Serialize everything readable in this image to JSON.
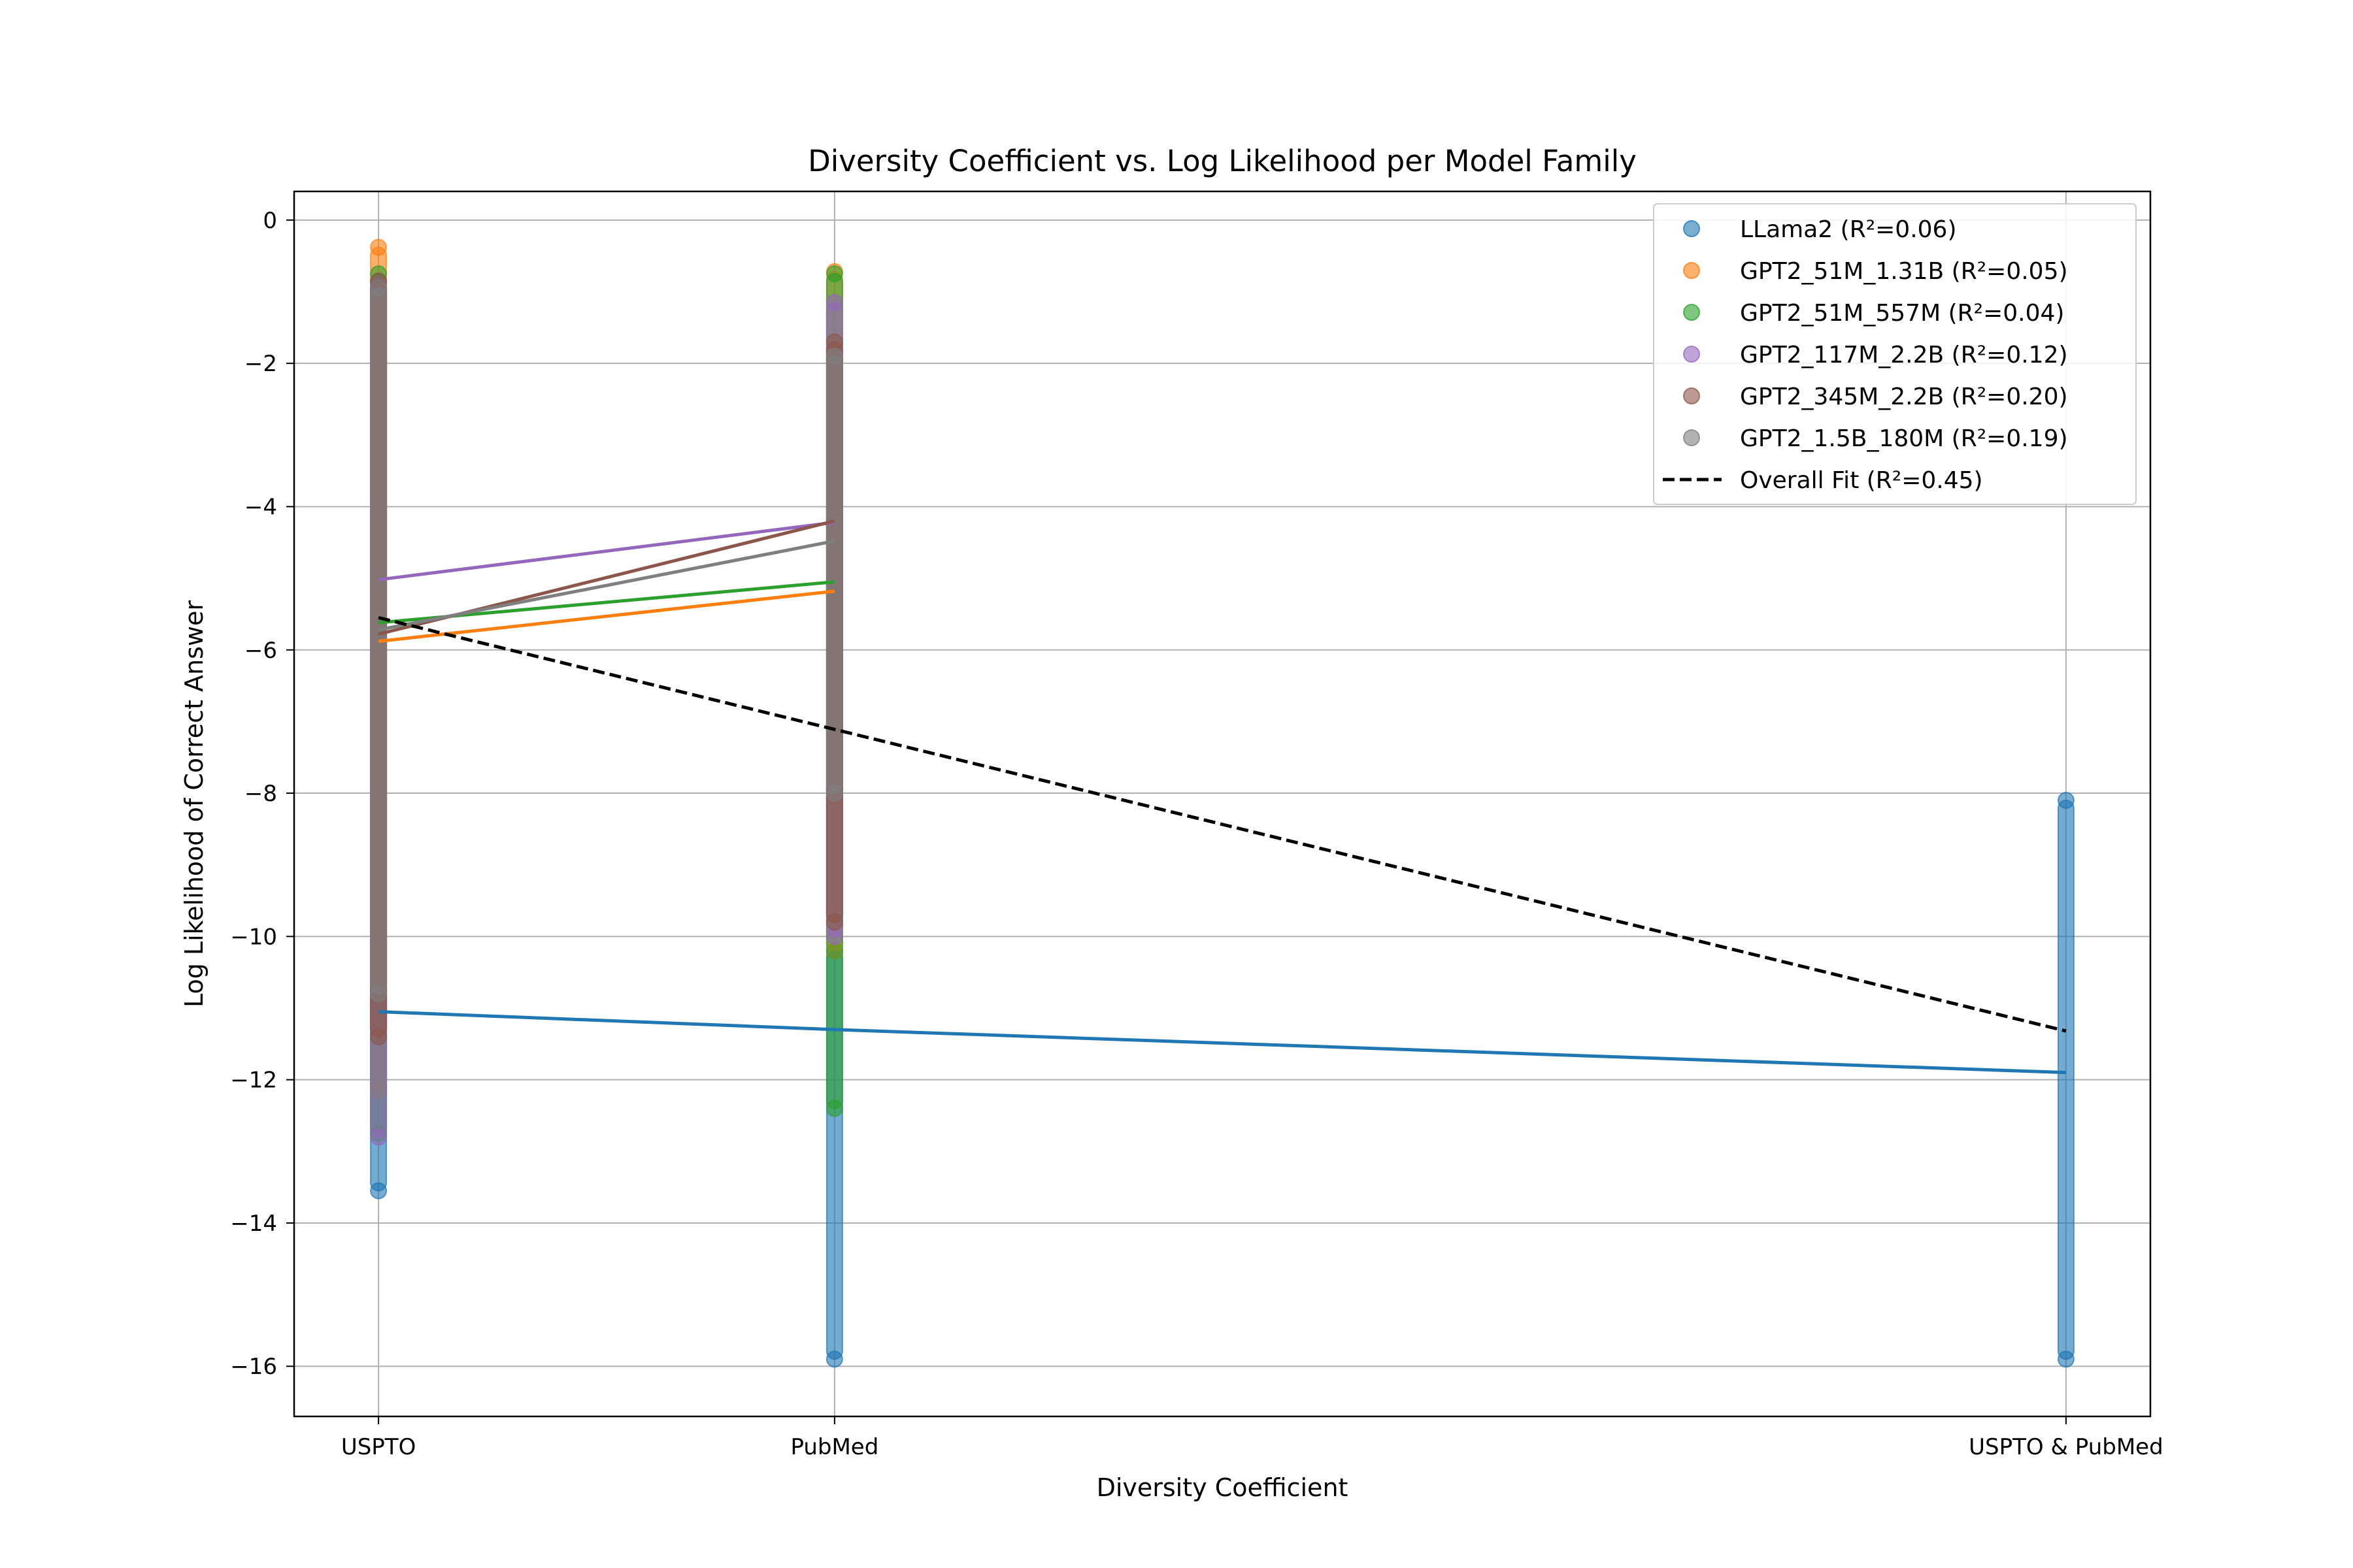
{
  "chart_data": {
    "type": "scatter",
    "title": "Diversity Coefficient vs. Log Likelihood per Model Family",
    "xlabel": "Diversity Coefficient",
    "ylabel": "Log Likelihood of Correct Answer",
    "categories": [
      "USPTO",
      "PubMed",
      "USPTO & PubMed"
    ],
    "x_positions": [
      0.2,
      0.4,
      0.94
    ],
    "xlim": [
      0.163,
      0.977
    ],
    "ylim": [
      -16.7,
      0.4
    ],
    "yticks": [
      0,
      -2,
      -4,
      -6,
      -8,
      -10,
      -12,
      -14,
      -16
    ],
    "ytick_labels": [
      "0",
      "−2",
      "−4",
      "−6",
      "−8",
      "−10",
      "−12",
      "−14",
      "−16"
    ],
    "grid": true,
    "legend_position": "upper right",
    "series": [
      {
        "name": "LLama2 (R²=0.06)",
        "color": "#1f77b4",
        "ranges": [
          {
            "x": 0.2,
            "ymin": -13.55,
            "ymax": -10.8
          },
          {
            "x": 0.4,
            "ymin": -15.9,
            "ymax": -10.2
          },
          {
            "x": 0.94,
            "ymin": -15.9,
            "ymax": -8.1
          }
        ],
        "fit": [
          {
            "x": 0.2,
            "y": -11.05
          },
          {
            "x": 0.4,
            "y": -11.3
          },
          {
            "x": 0.94,
            "y": -11.9
          }
        ]
      },
      {
        "name": "GPT2_51M_1.31B (R²=0.05)",
        "color": "#ff7f0e",
        "ranges": [
          {
            "x": 0.2,
            "ymin": -12.15,
            "ymax": -0.38
          },
          {
            "x": 0.4,
            "ymin": -10.2,
            "ymax": -0.72
          }
        ],
        "fit": [
          {
            "x": 0.2,
            "y": -5.88
          },
          {
            "x": 0.4,
            "y": -5.18
          }
        ]
      },
      {
        "name": "GPT2_51M_557M (R²=0.04)",
        "color": "#2ca02c",
        "ranges": [
          {
            "x": 0.2,
            "ymin": -12.75,
            "ymax": -0.75
          },
          {
            "x": 0.4,
            "ymin": -12.4,
            "ymax": -0.75
          }
        ],
        "fit": [
          {
            "x": 0.2,
            "y": -5.62
          },
          {
            "x": 0.4,
            "y": -5.05
          }
        ]
      },
      {
        "name": "GPT2_117M_2.2B (R²=0.12)",
        "color": "#9467bd",
        "ranges": [
          {
            "x": 0.2,
            "ymin": -12.8,
            "ymax": -0.9
          },
          {
            "x": 0.4,
            "ymin": -10.0,
            "ymax": -1.15
          }
        ],
        "fit": [
          {
            "x": 0.2,
            "y": -5.02
          },
          {
            "x": 0.4,
            "y": -4.22
          }
        ]
      },
      {
        "name": "GPT2_345M_2.2B (R²=0.20)",
        "color": "#8c564b",
        "ranges": [
          {
            "x": 0.2,
            "ymin": -11.4,
            "ymax": -0.85
          },
          {
            "x": 0.4,
            "ymin": -9.8,
            "ymax": -1.7
          }
        ],
        "fit": [
          {
            "x": 0.2,
            "y": -5.78
          },
          {
            "x": 0.4,
            "y": -4.2
          }
        ]
      },
      {
        "name": "GPT2_1.5B_180M (R²=0.19)",
        "color": "#7f7f7f",
        "ranges": [
          {
            "x": 0.2,
            "ymin": -10.8,
            "ymax": -0.95
          },
          {
            "x": 0.4,
            "ymin": -8.0,
            "ymax": -1.9
          }
        ],
        "fit": [
          {
            "x": 0.2,
            "y": -5.72
          },
          {
            "x": 0.4,
            "y": -4.48
          }
        ]
      }
    ],
    "overall_fit": {
      "name": "Overall Fit (R²=0.45)",
      "color": "#000000",
      "points": [
        {
          "x": 0.2,
          "y": -5.55
        },
        {
          "x": 0.94,
          "y": -11.32
        }
      ]
    }
  }
}
